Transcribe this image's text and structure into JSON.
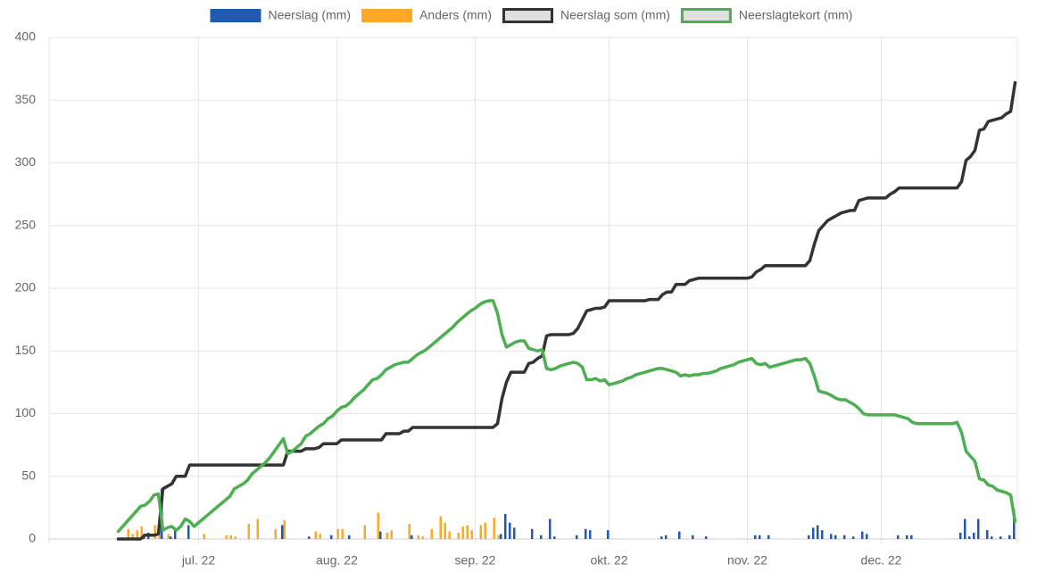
{
  "chart_data": {
    "type": "bar",
    "categories": [
      null,
      null,
      null,
      null,
      null,
      null,
      null,
      null,
      null,
      null,
      null,
      null,
      null,
      null,
      null,
      null,
      null,
      null,
      null,
      null,
      null,
      null,
      null,
      null,
      null,
      null,
      null,
      null,
      null,
      null,
      null,
      null,
      null,
      "jul. 22",
      null,
      null,
      null,
      null,
      null,
      null,
      null,
      null,
      null,
      null,
      null,
      null,
      null,
      null,
      null,
      null,
      null,
      null,
      null,
      null,
      null,
      null,
      null,
      null,
      null,
      null,
      null,
      null,
      null,
      null,
      "aug. 22",
      null,
      null,
      null,
      null,
      null,
      null,
      null,
      null,
      null,
      null,
      null,
      null,
      null,
      null,
      null,
      null,
      null,
      null,
      null,
      null,
      null,
      null,
      null,
      null,
      null,
      null,
      null,
      null,
      null,
      null,
      "sep. 22",
      null,
      null,
      null,
      null,
      null,
      null,
      null,
      null,
      null,
      null,
      null,
      null,
      null,
      null,
      null,
      null,
      null,
      null,
      null,
      null,
      null,
      null,
      null,
      null,
      null,
      null,
      null,
      null,
      null,
      "okt. 22",
      null,
      null,
      null,
      null,
      null,
      null,
      null,
      null,
      null,
      null,
      null,
      null,
      null,
      null,
      null,
      null,
      null,
      null,
      null,
      null,
      null,
      null,
      null,
      null,
      null,
      null,
      null,
      null,
      null,
      null,
      "nov. 22",
      null,
      null,
      null,
      null,
      null,
      null,
      null,
      null,
      null,
      null,
      null,
      null,
      null,
      null,
      null,
      null,
      null,
      null,
      null,
      null,
      null,
      null,
      null,
      null,
      null,
      null,
      null,
      null,
      null,
      "dec. 22",
      null,
      null,
      null,
      null,
      null,
      null,
      null,
      null,
      null,
      null,
      null,
      null,
      null,
      null,
      null,
      null,
      null,
      null,
      null,
      null,
      null,
      null,
      null,
      null,
      null,
      null,
      null,
      null,
      null,
      null
    ],
    "series": [
      {
        "name": "Neerslag (mm)",
        "type": "bar",
        "color": "#2158b0",
        "values": [
          null,
          null,
          null,
          null,
          null,
          null,
          null,
          null,
          null,
          null,
          null,
          null,
          null,
          null,
          null,
          null,
          null,
          null,
          null,
          null,
          null,
          4,
          5,
          null,
          null,
          40,
          null,
          2,
          7,
          null,
          null,
          11,
          null,
          null,
          null,
          null,
          null,
          null,
          null,
          null,
          null,
          null,
          null,
          null,
          null,
          null,
          null,
          null,
          null,
          null,
          null,
          null,
          11,
          null,
          null,
          null,
          null,
          null,
          2,
          null,
          null,
          null,
          null,
          3,
          null,
          null,
          null,
          3,
          null,
          null,
          null,
          null,
          null,
          null,
          6,
          null,
          null,
          null,
          null,
          null,
          null,
          3,
          null,
          null,
          null,
          null,
          null,
          null,
          null,
          null,
          null,
          null,
          null,
          null,
          null,
          null,
          null,
          null,
          null,
          null,
          null,
          4,
          20,
          13,
          9,
          null,
          null,
          null,
          8,
          null,
          3,
          null,
          16,
          2,
          null,
          null,
          null,
          null,
          3,
          null,
          8,
          7,
          null,
          null,
          null,
          7,
          null,
          null,
          null,
          null,
          null,
          null,
          null,
          null,
          null,
          null,
          null,
          2,
          3,
          null,
          null,
          6,
          null,
          null,
          3,
          null,
          null,
          2,
          null,
          null,
          null,
          null,
          null,
          null,
          null,
          null,
          null,
          null,
          3,
          3,
          null,
          3,
          null,
          null,
          null,
          null,
          null,
          null,
          null,
          null,
          3,
          9,
          11,
          7,
          null,
          4,
          3,
          null,
          3,
          null,
          2,
          null,
          6,
          4,
          null,
          null,
          null,
          null,
          null,
          null,
          3,
          null,
          3,
          3,
          null,
          null,
          null,
          null,
          null,
          null,
          null,
          null,
          null,
          null,
          5,
          16,
          2,
          5,
          16,
          null,
          7,
          2,
          null,
          2,
          null,
          3,
          24
        ]
      },
      {
        "name": "Anders (mm)",
        "type": "bar",
        "color": "#ffa726",
        "values": [
          null,
          null,
          null,
          null,
          null,
          null,
          null,
          null,
          null,
          null,
          null,
          null,
          null,
          null,
          null,
          null,
          null,
          8,
          4,
          7,
          10,
          null,
          null,
          11,
          8,
          null,
          4,
          null,
          null,
          null,
          null,
          null,
          null,
          null,
          4,
          null,
          null,
          null,
          null,
          3,
          3,
          2,
          null,
          null,
          12,
          null,
          16,
          null,
          null,
          null,
          8,
          null,
          15,
          null,
          null,
          null,
          null,
          null,
          null,
          6,
          4,
          null,
          null,
          null,
          8,
          8,
          null,
          null,
          null,
          null,
          11,
          null,
          null,
          21,
          null,
          5,
          7,
          null,
          null,
          null,
          12,
          null,
          3,
          2,
          null,
          8,
          null,
          18,
          13,
          6,
          null,
          5,
          10,
          11,
          7,
          null,
          11,
          13,
          null,
          17,
          3,
          null,
          null,
          null,
          null,
          null,
          null,
          null,
          null,
          null,
          null,
          null,
          null,
          null,
          null,
          null,
          null,
          null,
          null,
          null,
          null,
          null,
          null,
          null,
          null,
          null,
          null,
          null,
          null,
          null,
          null,
          null,
          null,
          null,
          null,
          null,
          null,
          null,
          null,
          null,
          null,
          null,
          null,
          null,
          null,
          null,
          null,
          null,
          null,
          null,
          null,
          null,
          null,
          null,
          null,
          null,
          null,
          null,
          null,
          null,
          null,
          null,
          null,
          null,
          null,
          null,
          null,
          null,
          null,
          null,
          null,
          null,
          null,
          null,
          null,
          null,
          null,
          null,
          null,
          null,
          null,
          null,
          null,
          null,
          null,
          null,
          null,
          null,
          null,
          null,
          null,
          null,
          null,
          null,
          null,
          null,
          null,
          null,
          null,
          null,
          null,
          null,
          null,
          null,
          null,
          null,
          null,
          null,
          null,
          null,
          null,
          null,
          null,
          null,
          null,
          null,
          null
        ]
      },
      {
        "name": "Neerslag som (mm)",
        "type": "line",
        "color": "#333333",
        "values": [
          null,
          null,
          null,
          null,
          null,
          null,
          null,
          null,
          null,
          null,
          null,
          null,
          null,
          null,
          null,
          0,
          0,
          0,
          0,
          0,
          0,
          3,
          3,
          3,
          4,
          40,
          42,
          44,
          50,
          50,
          50,
          59,
          59,
          59,
          59,
          59,
          59,
          59,
          59,
          59,
          59,
          59,
          59,
          59,
          59,
          59,
          59,
          59,
          59,
          59,
          59,
          59,
          59,
          70,
          70,
          70,
          70,
          72,
          72,
          72,
          73,
          76,
          76,
          76,
          76,
          79,
          79,
          79,
          79,
          79,
          79,
          79,
          79,
          79,
          79,
          84,
          84,
          84,
          84,
          86,
          86,
          89,
          89,
          89,
          89,
          89,
          89,
          89,
          89,
          89,
          89,
          89,
          89,
          89,
          89,
          89,
          89,
          89,
          89,
          89,
          92,
          112,
          125,
          133,
          133,
          133,
          133,
          140,
          141,
          144,
          146,
          162,
          163,
          163,
          163,
          163,
          163,
          164,
          168,
          175,
          182,
          183,
          184,
          184,
          185,
          190,
          190,
          190,
          190,
          190,
          190,
          190,
          190,
          190,
          191,
          191,
          191,
          195,
          197,
          197,
          203,
          203,
          203,
          206,
          207,
          208,
          208,
          208,
          208,
          208,
          208,
          208,
          208,
          208,
          208,
          208,
          208,
          209,
          213,
          215,
          218,
          218,
          218,
          218,
          218,
          218,
          218,
          218,
          218,
          218,
          222,
          235,
          246,
          250,
          254,
          256,
          258,
          260,
          261,
          262,
          262,
          270,
          271,
          272,
          272,
          272,
          272,
          272,
          275,
          277,
          280,
          280,
          280,
          280,
          280,
          280,
          280,
          280,
          280,
          280,
          280,
          280,
          280,
          280,
          285,
          302,
          305,
          310,
          326,
          327,
          333,
          334,
          335,
          336,
          339,
          341,
          364
        ]
      },
      {
        "name": "Neerslagtekort (mm)",
        "type": "line",
        "color": "#4caf50",
        "values": [
          null,
          null,
          null,
          null,
          null,
          null,
          null,
          null,
          null,
          null,
          null,
          null,
          null,
          null,
          null,
          6,
          10,
          14,
          18,
          22,
          26,
          27,
          30,
          35,
          36,
          7,
          9,
          10,
          7,
          10,
          16,
          14,
          10,
          13,
          16,
          19,
          22,
          25,
          28,
          31,
          34,
          40,
          42,
          44,
          47,
          52,
          55,
          58,
          61,
          65,
          70,
          75,
          80,
          68,
          70,
          73,
          76,
          82,
          84,
          87,
          90,
          92,
          96,
          98,
          102,
          105,
          106,
          109,
          113,
          116,
          119,
          123,
          127,
          128,
          131,
          135,
          137,
          139,
          140,
          141,
          141,
          144,
          147,
          149,
          151,
          154,
          157,
          160,
          163,
          166,
          169,
          173,
          176,
          179,
          182,
          184,
          187,
          189,
          190,
          190,
          180,
          163,
          153,
          155,
          157,
          158,
          158,
          152,
          151,
          150,
          151,
          136,
          135,
          136,
          138,
          139,
          140,
          141,
          140,
          137,
          127,
          127,
          128,
          126,
          127,
          123,
          124,
          125,
          126,
          128,
          129,
          131,
          132,
          133,
          134,
          135,
          136,
          136,
          135,
          134,
          133,
          130,
          131,
          130,
          131,
          131,
          132,
          132,
          133,
          134,
          136,
          137,
          138,
          139,
          141,
          142,
          143,
          144,
          140,
          139,
          140,
          137,
          138,
          139,
          140,
          141,
          142,
          143,
          143,
          144,
          140,
          130,
          118,
          117,
          116,
          114,
          112,
          111,
          111,
          109,
          107,
          104,
          100,
          99,
          99,
          99,
          99,
          99,
          99,
          99,
          98,
          97,
          96,
          93,
          92,
          92,
          92,
          92,
          92,
          92,
          92,
          92,
          92,
          93,
          85,
          70,
          66,
          62,
          48,
          47,
          43,
          42,
          39,
          38,
          37,
          35,
          14
        ]
      }
    ],
    "ylim": [
      0,
      400
    ],
    "yticks": [
      0,
      50,
      100,
      150,
      200,
      250,
      300,
      350,
      400
    ],
    "grid": true,
    "legend": "top"
  }
}
